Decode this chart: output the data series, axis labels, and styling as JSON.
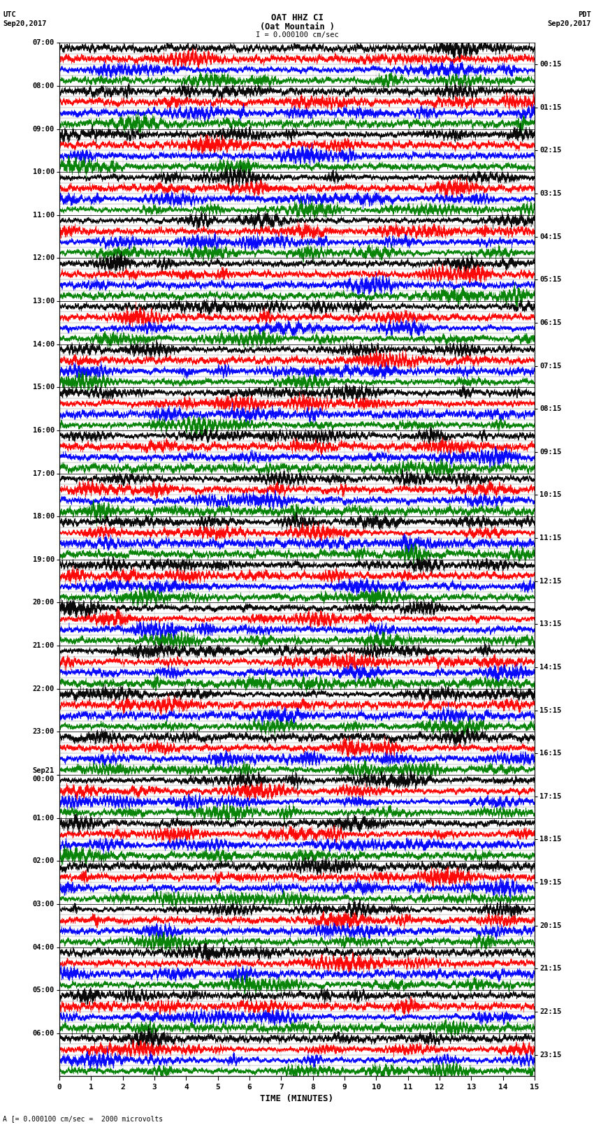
{
  "title_line1": "OAT HHZ CI",
  "title_line2": "(Oat Mountain )",
  "scale_label": "I = 0.000100 cm/sec",
  "left_header": "UTC",
  "left_date": "Sep20,2017",
  "right_header": "PDT",
  "right_date": "Sep20,2017",
  "bottom_label": "TIME (MINUTES)",
  "bottom_note": "A [= 0.000100 cm/sec =  2000 microvolts",
  "xlabel_ticks": [
    0,
    1,
    2,
    3,
    4,
    5,
    6,
    7,
    8,
    9,
    10,
    11,
    12,
    13,
    14,
    15
  ],
  "left_times": [
    "07:00",
    "08:00",
    "09:00",
    "10:00",
    "11:00",
    "12:00",
    "13:00",
    "14:00",
    "15:00",
    "16:00",
    "17:00",
    "18:00",
    "19:00",
    "20:00",
    "21:00",
    "22:00",
    "23:00",
    "Sep21\n00:00",
    "01:00",
    "02:00",
    "03:00",
    "04:00",
    "05:00",
    "06:00"
  ],
  "right_times": [
    "00:15",
    "01:15",
    "02:15",
    "03:15",
    "04:15",
    "05:15",
    "06:15",
    "07:15",
    "08:15",
    "09:15",
    "10:15",
    "11:15",
    "12:15",
    "13:15",
    "14:15",
    "15:15",
    "16:15",
    "17:15",
    "18:15",
    "19:15",
    "20:15",
    "21:15",
    "22:15",
    "23:15"
  ],
  "n_rows": 24,
  "n_traces_per_row": 4,
  "trace_colors": [
    "black",
    "red",
    "blue",
    "green"
  ],
  "samples_per_trace": 9000,
  "bg_color": "white",
  "fig_width": 8.5,
  "fig_height": 16.13,
  "noise_seed": 42
}
